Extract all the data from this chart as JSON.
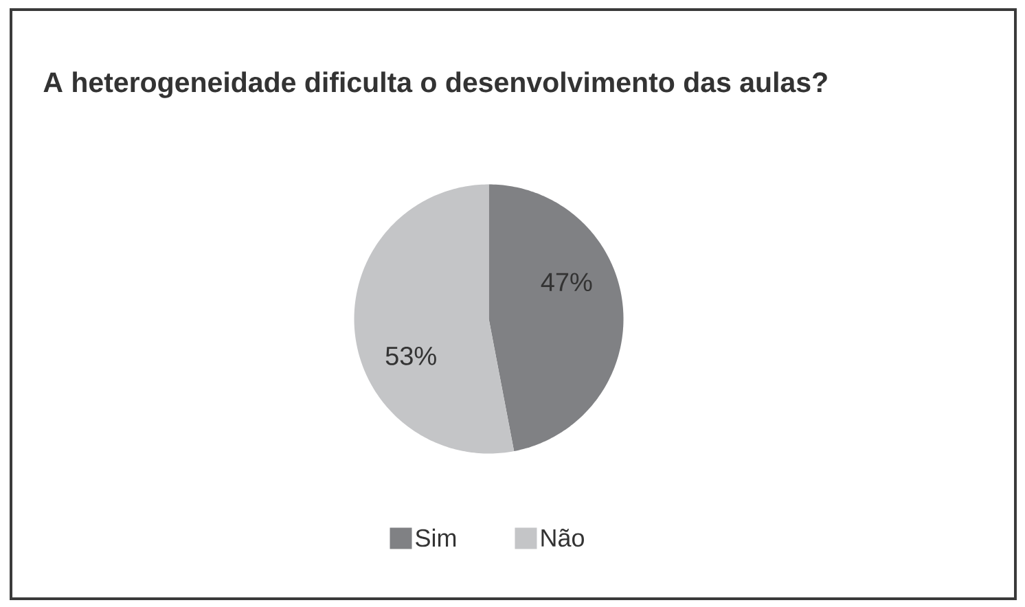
{
  "chart_data": {
    "type": "pie",
    "title": "A heterogeneidade dificulta o desenvolvimento das aulas?",
    "categories": [
      "Sim",
      "Não"
    ],
    "values": [
      47,
      53
    ],
    "colors": [
      "#808184",
      "#c4c5c7"
    ],
    "value_labels": [
      "47%",
      "53%"
    ],
    "legend": "bottom"
  }
}
